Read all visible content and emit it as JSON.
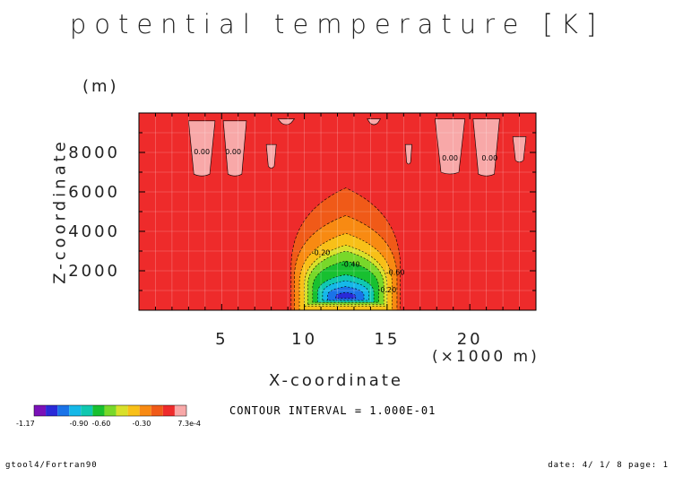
{
  "title": "potential temperature [K]",
  "contour_interval": "CONTOUR INTERVAL = 1.000E-01",
  "footer": {
    "left": "gtool4/Fortran90",
    "right": "date: 4/ 1/ 8 page: 1"
  },
  "colors": {
    "background_field": "#ee2b2b",
    "palette": [
      "#7a11b8",
      "#2a2ad8",
      "#1a73e8",
      "#15b8e8",
      "#10c8b0",
      "#18c030",
      "#78d82a",
      "#d8e02a",
      "#f8c018",
      "#f88a12",
      "#f05a18",
      "#ee2b2b",
      "#f8a8a8"
    ]
  },
  "chart_data": {
    "type": "heatmap",
    "title": "potential temperature [K]",
    "xlabel": "X-coordinate",
    "x_unit": "(×1000 m)",
    "ylabel": "Z-coordinate",
    "y_unit": "(m)",
    "xlim": [
      0,
      24
    ],
    "ylim": [
      0,
      10000
    ],
    "xticks": [
      5,
      10,
      15,
      20
    ],
    "xtick_labels": [
      "5",
      "10",
      "15",
      "20"
    ],
    "yticks": [
      2000,
      4000,
      6000,
      8000
    ],
    "ytick_labels": [
      "2000",
      "4000",
      "6000",
      "8000"
    ],
    "grid": true,
    "contour_interval": 0.1,
    "bubble": {
      "x_center": 12.5,
      "z_center": 1500,
      "min_value": -1.17
    },
    "contour_labels": [
      {
        "x": 11.0,
        "z": 2800,
        "text": "-0.20"
      },
      {
        "x": 12.8,
        "z": 2200,
        "text": "-0.40"
      },
      {
        "x": 15.5,
        "z": 1800,
        "text": "-0.60"
      },
      {
        "x": 15.0,
        "z": 900,
        "text": "-0.20"
      },
      {
        "x": 3.8,
        "z": 7900,
        "text": "0.00"
      },
      {
        "x": 5.7,
        "z": 7900,
        "text": "0.00"
      },
      {
        "x": 18.8,
        "z": 7600,
        "text": "0.00"
      },
      {
        "x": 21.2,
        "z": 7600,
        "text": "0.00"
      }
    ],
    "colorbar": {
      "min_label": "-1.17",
      "max_label": "7.3e-4",
      "middle_labels": [
        "-0.90",
        "-0.60",
        "-0.30"
      ]
    }
  }
}
